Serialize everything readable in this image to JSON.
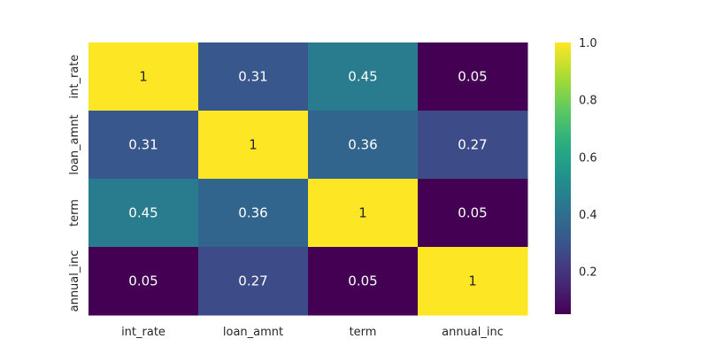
{
  "chart_data": {
    "type": "heatmap",
    "title": "",
    "xlabel": "",
    "ylabel": "",
    "x_categories": [
      "int_rate",
      "loan_amnt",
      "term",
      "annual_inc"
    ],
    "y_categories": [
      "int_rate",
      "loan_amnt",
      "term",
      "annual_inc"
    ],
    "values": [
      [
        1,
        0.31,
        0.45,
        0.05
      ],
      [
        0.31,
        1,
        0.36,
        0.27
      ],
      [
        0.45,
        0.36,
        1,
        0.05
      ],
      [
        0.05,
        0.27,
        0.05,
        1
      ]
    ],
    "value_labels": [
      [
        "1",
        "0.31",
        "0.45",
        "0.05"
      ],
      [
        "0.31",
        "1",
        "0.36",
        "0.27"
      ],
      [
        "0.45",
        "0.36",
        "1",
        "0.05"
      ],
      [
        "0.05",
        "0.27",
        "0.05",
        "1"
      ]
    ],
    "colormap": "viridis",
    "colorbar": {
      "range": [
        0.05,
        1.0
      ],
      "ticks": [
        0.2,
        0.4,
        0.6,
        0.8,
        1.0
      ],
      "tick_labels": [
        "0.2",
        "0.4",
        "0.6",
        "0.8",
        "1.0"
      ]
    },
    "annotations_on": true,
    "grid": false
  }
}
